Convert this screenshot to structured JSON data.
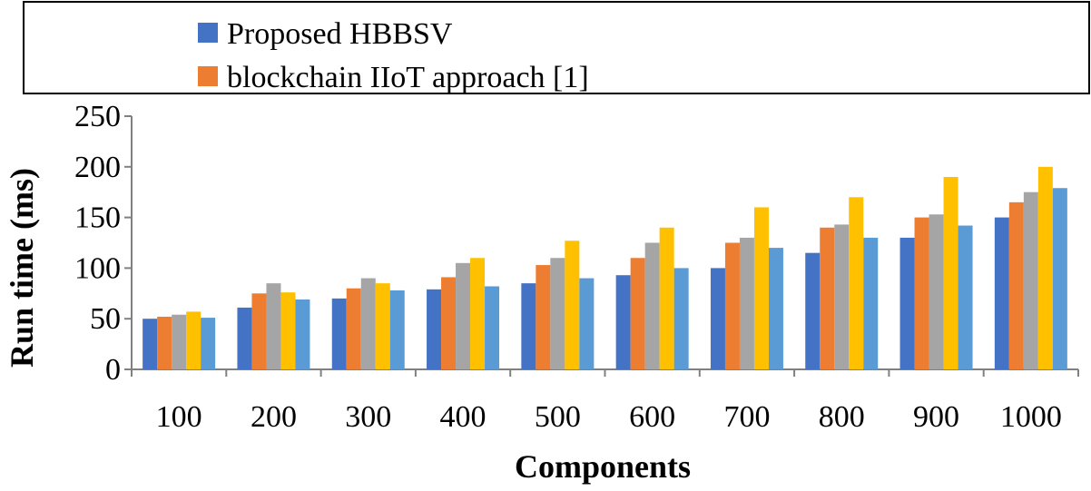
{
  "chart_data": {
    "type": "bar",
    "title": "",
    "xlabel": "Components",
    "ylabel": "Run time (ms)",
    "ylim": [
      0,
      250
    ],
    "yticks": [
      0,
      50,
      100,
      150,
      200,
      250
    ],
    "categories": [
      "100",
      "200",
      "300",
      "400",
      "500",
      "600",
      "700",
      "800",
      "900",
      "1000"
    ],
    "legend_position": "top",
    "grid": false,
    "series": [
      {
        "name": "Proposed HBBSV",
        "color": "#4472C4",
        "values": [
          50,
          61,
          70,
          79,
          85,
          93,
          100,
          115,
          130,
          150
        ]
      },
      {
        "name": "blockchain IIoT approach [1]",
        "color": "#ED7D31",
        "values": [
          52,
          75,
          80,
          91,
          103,
          110,
          125,
          140,
          150,
          165
        ]
      },
      {
        "name": "",
        "color": "#A5A5A5",
        "values": [
          54,
          85,
          90,
          105,
          110,
          125,
          130,
          143,
          153,
          175
        ]
      },
      {
        "name": "",
        "color": "#FFC000",
        "values": [
          57,
          76,
          85,
          110,
          127,
          140,
          160,
          170,
          190,
          200
        ]
      },
      {
        "name": "",
        "color": "#5B9BD5",
        "values": [
          51,
          69,
          78,
          82,
          90,
          100,
          120,
          130,
          142,
          179
        ]
      }
    ]
  }
}
